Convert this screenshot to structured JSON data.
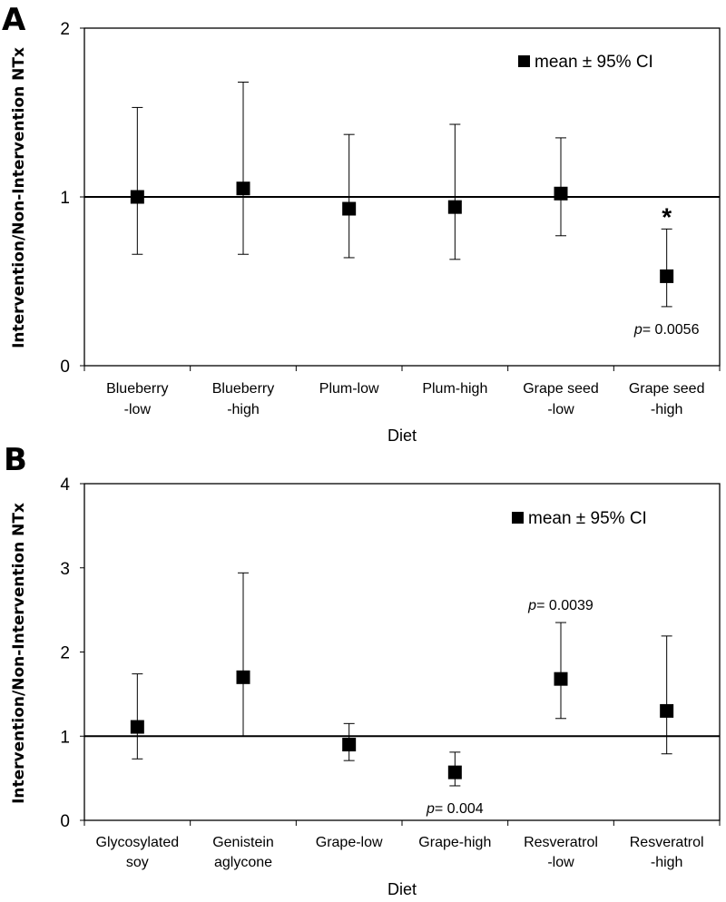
{
  "chart_data": [
    {
      "type": "scatter",
      "panel": "A",
      "ylabel": "Intervention/Non-Intervention NTx",
      "xlabel": "Diet",
      "ylim": [
        0,
        2
      ],
      "yticks": [
        "0",
        "1",
        "2"
      ],
      "reference_line": 1,
      "legend": "mean ± 95% CI",
      "categories": [
        {
          "line1": "Blueberry",
          "line2": "-low"
        },
        {
          "line1": "Blueberry",
          "line2": "-high"
        },
        {
          "line1": "Plum-low",
          "line2": ""
        },
        {
          "line1": "Plum-high",
          "line2": ""
        },
        {
          "line1": "Grape seed",
          "line2": "-low"
        },
        {
          "line1": "Grape seed",
          "line2": "-high"
        }
      ],
      "means": [
        1.0,
        1.05,
        0.93,
        0.94,
        1.02,
        0.53
      ],
      "ci_low": [
        0.66,
        0.66,
        0.64,
        0.63,
        0.77,
        0.35
      ],
      "ci_high": [
        1.53,
        1.68,
        1.37,
        1.43,
        1.35,
        0.81
      ],
      "annotations": [
        {
          "category_index": 5,
          "p_label": "p",
          "p_value": "= 0.0056",
          "star": "*"
        }
      ]
    },
    {
      "type": "scatter",
      "panel": "B",
      "ylabel": "Intervention/Non-Intervention NTx",
      "xlabel": "Diet",
      "ylim": [
        0,
        4
      ],
      "yticks": [
        "0",
        "1",
        "2",
        "3",
        "4"
      ],
      "reference_line": 1,
      "legend": "mean ± 95% CI",
      "categories": [
        {
          "line1": "Glycosylated",
          "line2": "soy"
        },
        {
          "line1": "Genistein",
          "line2": "aglycone"
        },
        {
          "line1": "Grape-low",
          "line2": ""
        },
        {
          "line1": "Grape-high",
          "line2": ""
        },
        {
          "line1": "Resveratrol",
          "line2": "-low"
        },
        {
          "line1": "Resveratrol",
          "line2": "-high"
        }
      ],
      "means": [
        1.11,
        1.7,
        0.9,
        0.57,
        1.68,
        1.3
      ],
      "ci_low": [
        0.73,
        1.0,
        0.71,
        0.41,
        1.21,
        0.79
      ],
      "ci_high": [
        1.74,
        2.94,
        1.15,
        0.81,
        2.35,
        2.19
      ],
      "annotations": [
        {
          "category_index": 3,
          "p_label": "p",
          "p_value": "= 0.004",
          "star": ""
        },
        {
          "category_index": 4,
          "p_label": "p",
          "p_value": "= 0.0039",
          "star": ""
        }
      ]
    }
  ]
}
